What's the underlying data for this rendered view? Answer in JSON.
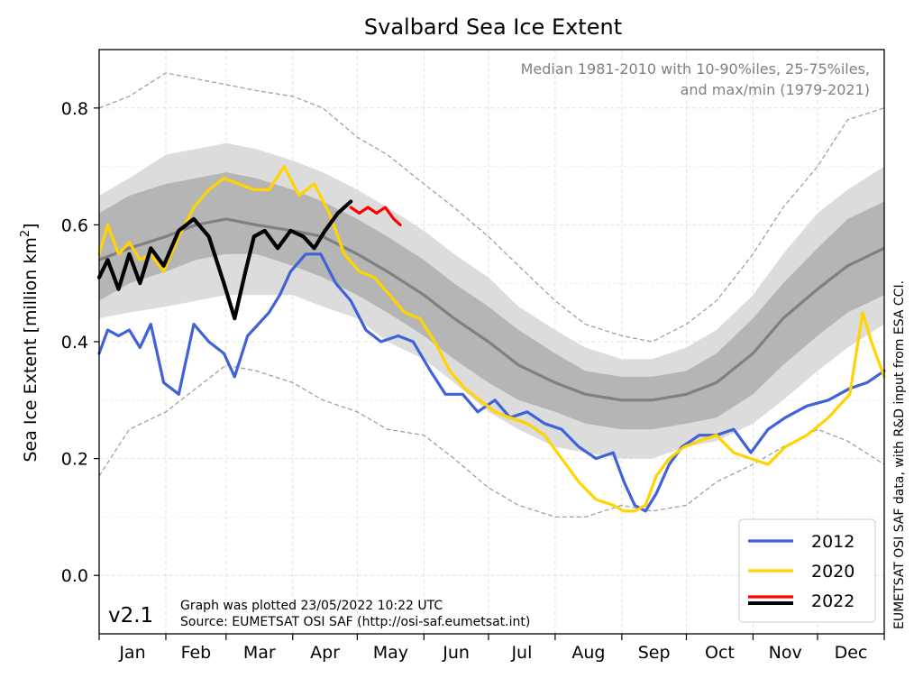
{
  "chart_data": {
    "type": "line",
    "title": "Svalbard Sea Ice Extent",
    "ylabel_text": "Sea Ice Extent [million km",
    "ylabel_sup": "2",
    "ylabel_close": "]",
    "ylim": [
      -0.1,
      0.9
    ],
    "yticks": [
      0.0,
      0.2,
      0.4,
      0.6,
      0.8
    ],
    "ytick_labels": [
      "0.0",
      "0.2",
      "0.4",
      "0.6",
      "0.8"
    ],
    "month_labels": [
      "Jan",
      "Feb",
      "Mar",
      "Apr",
      "May",
      "Jun",
      "Jul",
      "Aug",
      "Sep",
      "Oct",
      "Nov",
      "Dec"
    ],
    "xlim_days": [
      1,
      366
    ],
    "grid": true,
    "annotation_line1": "Median 1981-2010 with 10-90%iles, 25-75%iles,",
    "annotation_line2": "and max/min (1979-2021)",
    "version": "v2.1",
    "plotted_note": "Graph was plotted 23/05/2022 10:22 UTC",
    "source_note": "Source: EUMETSAT OSI SAF (http://osi-saf.eumetsat.int)",
    "credit": "EUMETSAT OSI SAF data, with R&D input from ESA CCI.",
    "legend_position": "bottom-right",
    "legend": [
      {
        "label": "2012",
        "colors": [
          "#4062d8"
        ]
      },
      {
        "label": "2020",
        "colors": [
          "#ffd400"
        ]
      },
      {
        "label": "2022",
        "colors": [
          "#ff0000",
          "#000000"
        ]
      }
    ],
    "climatology": {
      "day": [
        1,
        15,
        32,
        46,
        60,
        74,
        91,
        105,
        121,
        135,
        152,
        166,
        182,
        196,
        213,
        227,
        244,
        258,
        274,
        288,
        305,
        319,
        335,
        349,
        366
      ],
      "median": [
        0.54,
        0.56,
        0.58,
        0.6,
        0.61,
        0.6,
        0.59,
        0.58,
        0.55,
        0.52,
        0.48,
        0.44,
        0.4,
        0.36,
        0.33,
        0.31,
        0.3,
        0.3,
        0.31,
        0.33,
        0.38,
        0.44,
        0.49,
        0.53,
        0.56
      ],
      "p25": [
        0.47,
        0.5,
        0.52,
        0.54,
        0.55,
        0.55,
        0.53,
        0.51,
        0.48,
        0.45,
        0.41,
        0.37,
        0.33,
        0.3,
        0.28,
        0.26,
        0.25,
        0.25,
        0.26,
        0.27,
        0.31,
        0.36,
        0.41,
        0.45,
        0.48
      ],
      "p75": [
        0.62,
        0.65,
        0.67,
        0.68,
        0.69,
        0.68,
        0.66,
        0.64,
        0.61,
        0.58,
        0.54,
        0.5,
        0.46,
        0.42,
        0.38,
        0.35,
        0.34,
        0.34,
        0.35,
        0.38,
        0.44,
        0.5,
        0.56,
        0.61,
        0.64
      ],
      "p10": [
        0.44,
        0.45,
        0.46,
        0.47,
        0.48,
        0.48,
        0.48,
        0.46,
        0.44,
        0.4,
        0.37,
        0.33,
        0.28,
        0.25,
        0.22,
        0.21,
        0.2,
        0.2,
        0.22,
        0.23,
        0.26,
        0.3,
        0.35,
        0.39,
        0.43
      ],
      "p90": [
        0.65,
        0.68,
        0.72,
        0.73,
        0.74,
        0.73,
        0.71,
        0.69,
        0.66,
        0.63,
        0.59,
        0.55,
        0.51,
        0.46,
        0.42,
        0.39,
        0.37,
        0.37,
        0.39,
        0.42,
        0.48,
        0.55,
        0.62,
        0.66,
        0.7
      ],
      "max": [
        0.8,
        0.82,
        0.86,
        0.85,
        0.84,
        0.83,
        0.82,
        0.8,
        0.75,
        0.72,
        0.67,
        0.63,
        0.58,
        0.53,
        0.47,
        0.43,
        0.41,
        0.4,
        0.43,
        0.47,
        0.55,
        0.63,
        0.7,
        0.78,
        0.8
      ],
      "min": [
        0.17,
        0.25,
        0.28,
        0.32,
        0.36,
        0.35,
        0.33,
        0.3,
        0.28,
        0.25,
        0.24,
        0.2,
        0.15,
        0.12,
        0.1,
        0.1,
        0.12,
        0.11,
        0.12,
        0.16,
        0.19,
        0.22,
        0.25,
        0.23,
        0.19
      ]
    },
    "series": [
      {
        "name": "2012",
        "color": "#4062d8",
        "day": [
          1,
          5,
          10,
          15,
          20,
          25,
          31,
          38,
          45,
          52,
          59,
          64,
          70,
          75,
          80,
          85,
          90,
          97,
          104,
          111,
          118,
          125,
          132,
          140,
          147,
          155,
          162,
          170,
          177,
          185,
          192,
          200,
          208,
          216,
          224,
          232,
          240,
          245,
          250,
          255,
          260,
          266,
          272,
          280,
          288,
          296,
          304,
          312,
          320,
          330,
          340,
          350,
          358,
          366
        ],
        "values": [
          0.38,
          0.42,
          0.41,
          0.42,
          0.39,
          0.43,
          0.33,
          0.31,
          0.43,
          0.4,
          0.38,
          0.34,
          0.41,
          0.43,
          0.45,
          0.48,
          0.52,
          0.55,
          0.55,
          0.5,
          0.47,
          0.42,
          0.4,
          0.41,
          0.4,
          0.35,
          0.31,
          0.31,
          0.28,
          0.3,
          0.27,
          0.28,
          0.26,
          0.25,
          0.22,
          0.2,
          0.21,
          0.16,
          0.12,
          0.11,
          0.14,
          0.19,
          0.22,
          0.24,
          0.24,
          0.25,
          0.21,
          0.25,
          0.27,
          0.29,
          0.3,
          0.32,
          0.33,
          0.35
        ]
      },
      {
        "name": "2020",
        "color": "#ffd400",
        "day": [
          1,
          5,
          10,
          15,
          20,
          25,
          31,
          38,
          45,
          52,
          59,
          66,
          73,
          80,
          87,
          94,
          101,
          108,
          115,
          122,
          129,
          136,
          143,
          150,
          157,
          164,
          171,
          178,
          185,
          192,
          200,
          208,
          216,
          224,
          232,
          240,
          245,
          250,
          255,
          260,
          266,
          273,
          280,
          288,
          296,
          304,
          312,
          320,
          330,
          340,
          350,
          356,
          360,
          366
        ],
        "values": [
          0.55,
          0.6,
          0.55,
          0.57,
          0.54,
          0.55,
          0.52,
          0.58,
          0.63,
          0.66,
          0.68,
          0.67,
          0.66,
          0.66,
          0.7,
          0.65,
          0.67,
          0.62,
          0.55,
          0.52,
          0.51,
          0.48,
          0.45,
          0.44,
          0.4,
          0.35,
          0.32,
          0.3,
          0.28,
          0.27,
          0.26,
          0.24,
          0.2,
          0.16,
          0.13,
          0.12,
          0.11,
          0.11,
          0.12,
          0.17,
          0.2,
          0.22,
          0.23,
          0.24,
          0.21,
          0.2,
          0.19,
          0.22,
          0.24,
          0.27,
          0.31,
          0.45,
          0.4,
          0.34
        ]
      },
      {
        "name": "2022 (to date)",
        "color": "#000000",
        "day": [
          1,
          5,
          10,
          15,
          20,
          25,
          31,
          38,
          45,
          52,
          59,
          64,
          69,
          73,
          78,
          84,
          90,
          96,
          101,
          106,
          112,
          118
        ],
        "values": [
          0.51,
          0.54,
          0.49,
          0.55,
          0.5,
          0.56,
          0.53,
          0.59,
          0.61,
          0.58,
          0.5,
          0.44,
          0.52,
          0.58,
          0.59,
          0.56,
          0.59,
          0.58,
          0.56,
          0.59,
          0.62,
          0.64
        ]
      },
      {
        "name": "2022 (latest)",
        "color": "#ff0000",
        "day": [
          118,
          122,
          126,
          130,
          134,
          138,
          141
        ],
        "values": [
          0.63,
          0.62,
          0.63,
          0.62,
          0.63,
          0.61,
          0.6
        ]
      }
    ]
  }
}
